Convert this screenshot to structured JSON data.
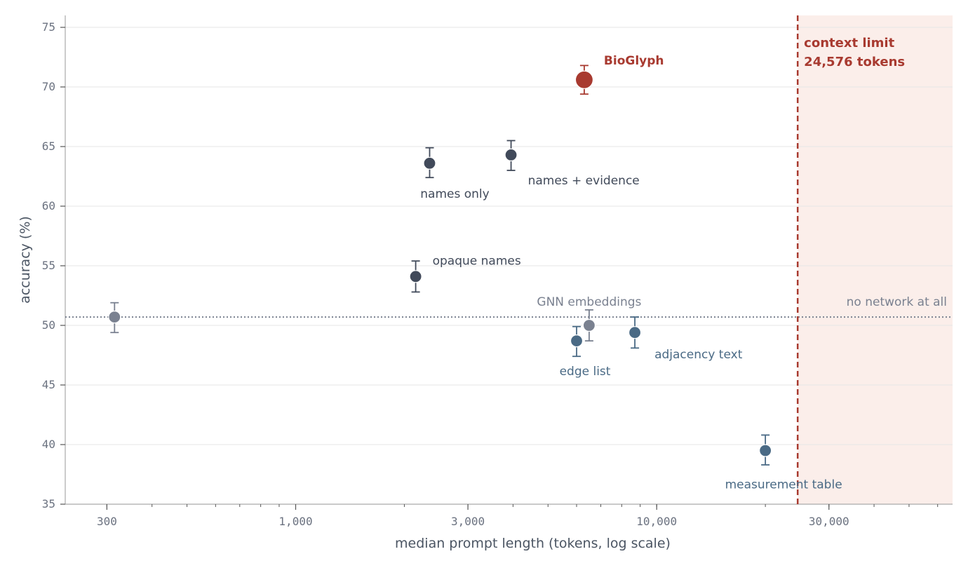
{
  "chart_data": {
    "type": "scatter",
    "title": "",
    "xlabel": "median prompt length (tokens, log scale)",
    "ylabel": "accuracy (%)",
    "xscale": "log",
    "xlim": [
      230,
      66000
    ],
    "ylim": [
      35,
      76
    ],
    "grid": "horizontal",
    "x_ticks": [
      {
        "value": 300,
        "label": "300"
      },
      {
        "value": 1000,
        "label": "1,000"
      },
      {
        "value": 3000,
        "label": "3,000"
      },
      {
        "value": 10000,
        "label": "10,000"
      },
      {
        "value": 30000,
        "label": "30,000"
      }
    ],
    "y_ticks": [
      35,
      40,
      45,
      50,
      55,
      60,
      65,
      70,
      75
    ],
    "points": [
      {
        "label": "",
        "x": 315,
        "y": 50.7,
        "err_low": 49.4,
        "err_high": 51.9,
        "color": "#7a8190",
        "label_color": "#7a8190"
      },
      {
        "label": "names only",
        "x": 2350,
        "y": 63.6,
        "err_low": 62.4,
        "err_high": 64.9,
        "color": "#414a5a",
        "label_color": "#414a5a"
      },
      {
        "label": "names + evidence",
        "x": 3950,
        "y": 64.3,
        "err_low": 63.0,
        "err_high": 65.5,
        "color": "#414a5a",
        "label_color": "#414a5a"
      },
      {
        "label": "opaque names",
        "x": 2150,
        "y": 54.1,
        "err_low": 52.8,
        "err_high": 55.4,
        "color": "#414a5a",
        "label_color": "#414a5a"
      },
      {
        "label": "GNN embeddings",
        "x": 6500,
        "y": 50.0,
        "err_low": 48.7,
        "err_high": 51.3,
        "color": "#7a8190",
        "label_color": "#7a8190"
      },
      {
        "label": "edge list",
        "x": 6000,
        "y": 48.7,
        "err_low": 47.4,
        "err_high": 49.9,
        "color": "#4a6a85",
        "label_color": "#4a6a85"
      },
      {
        "label": "adjacency text",
        "x": 8700,
        "y": 49.4,
        "err_low": 48.1,
        "err_high": 50.7,
        "color": "#4a6a85",
        "label_color": "#4a6a85"
      },
      {
        "label": "measurement table",
        "x": 20000,
        "y": 39.5,
        "err_low": 38.3,
        "err_high": 40.8,
        "color": "#4a6a85",
        "label_color": "#4a6a85"
      },
      {
        "label": "BioGlyph",
        "x": 6300,
        "y": 70.6,
        "err_low": 69.4,
        "err_high": 71.8,
        "color": "#a83a30",
        "label_color": "#a83a30",
        "highlight": true
      }
    ],
    "baseline": {
      "label": "no network at all",
      "y": 50.7,
      "color": "#7a8190"
    },
    "context_limit": {
      "label_line1": "context limit",
      "label_line2": "24,576 tokens",
      "x": 24576,
      "color": "#a83a30",
      "shade": "#fbeeea"
    }
  }
}
